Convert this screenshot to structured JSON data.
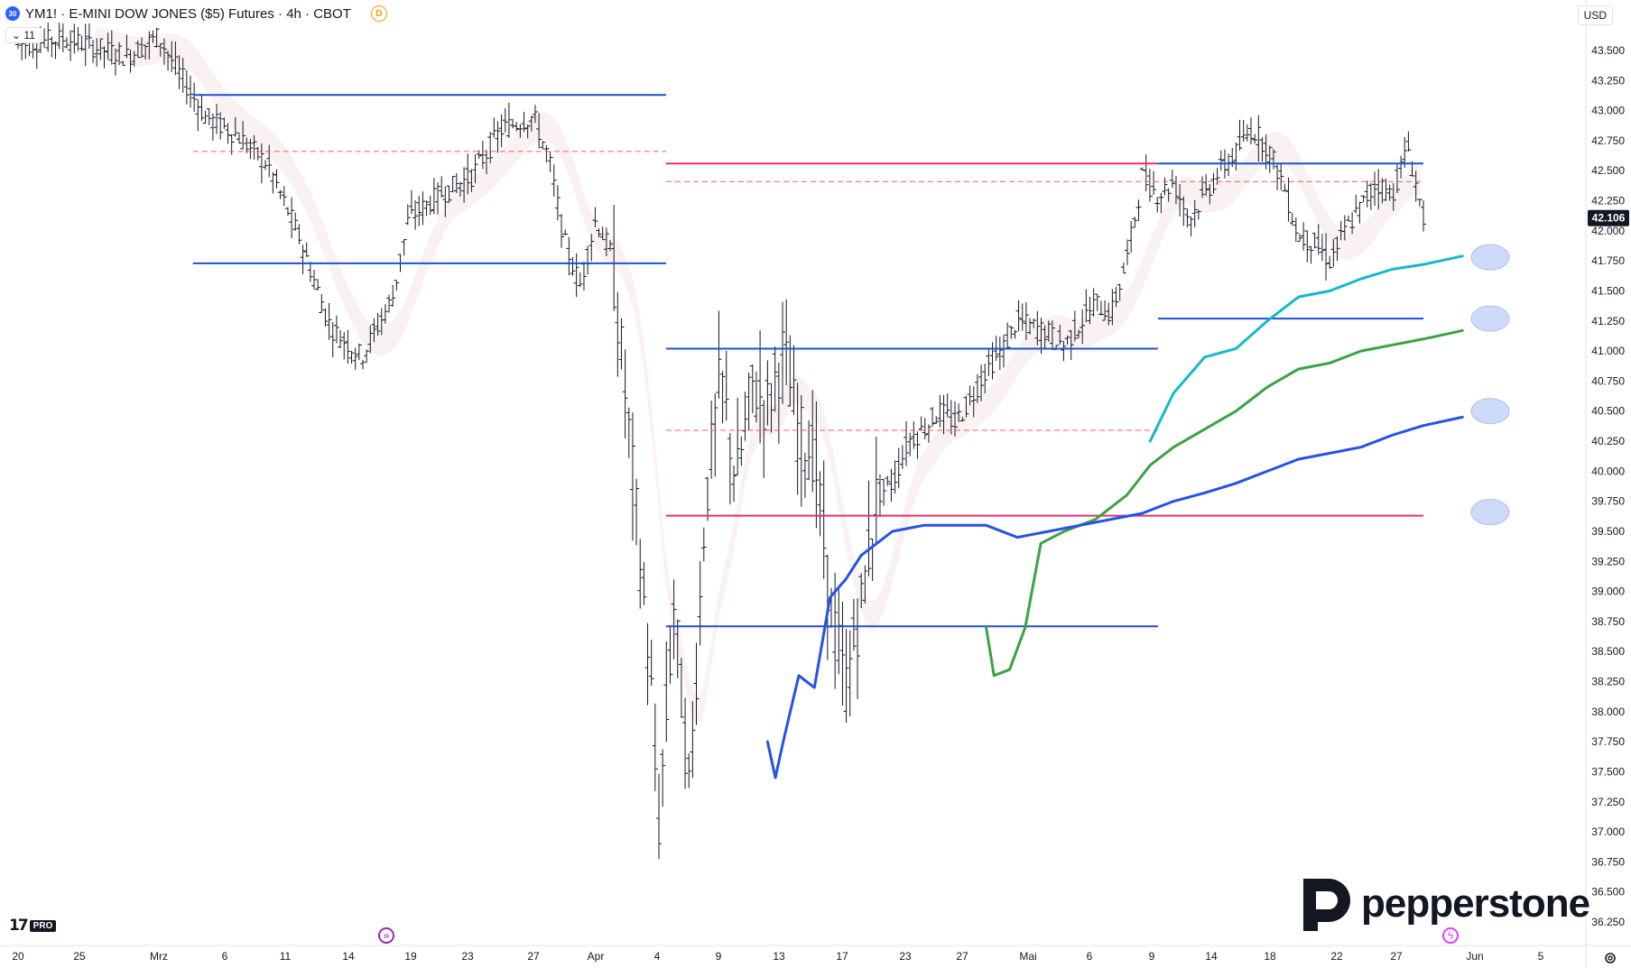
{
  "header": {
    "symbol_badge": "30",
    "title": "YM1! · E-MINI DOW JONES ($5) Futures · 4h · CBOT",
    "session_badge": "D",
    "collapse_label": "11"
  },
  "currency_label": "USD",
  "logos": {
    "tradingview": "17",
    "tradingview_pro": "PRO",
    "broker": "pepperstone"
  },
  "icons": [
    "goto-realtime-icon",
    "lightning-icon",
    "settings-icon"
  ],
  "colors": {
    "line_blue": "#1f4fd6",
    "line_pink": "#e5306c",
    "dash_red": "#f05a5a",
    "ema_cyan": "#17b7cc",
    "ema_green": "#3aa344",
    "ema_blue": "#2453e6",
    "price_label_bg": "#131722",
    "marker": "#c9d7f7"
  },
  "chart_data": {
    "type": "line",
    "title": "",
    "xlabel": "",
    "ylabel": "",
    "ylim": [
      36.0,
      43.8
    ],
    "grid": false,
    "last_price": "42.106",
    "y_ticks": [
      "43.500",
      "43.250",
      "43.000",
      "42.750",
      "42.500",
      "42.250",
      "42.000",
      "41.750",
      "41.500",
      "41.250",
      "41.000",
      "40.750",
      "40.500",
      "40.250",
      "40.000",
      "39.750",
      "39.500",
      "39.250",
      "39.000",
      "38.750",
      "38.500",
      "38.250",
      "38.000",
      "37.750",
      "37.500",
      "37.250",
      "37.000",
      "36.750",
      "36.500",
      "36.250"
    ],
    "x_ticks": [
      "20",
      "25",
      "Mrz",
      "6",
      "11",
      "14",
      "19",
      "23",
      "27",
      "Apr",
      "4",
      "9",
      "13",
      "17",
      "23",
      "27",
      "Mai",
      "6",
      "9",
      "14",
      "18",
      "22",
      "27",
      "Jun",
      "5"
    ],
    "price_path": [
      [
        0.0,
        43.55
      ],
      [
        0.03,
        43.6
      ],
      [
        0.07,
        43.45
      ],
      [
        0.09,
        43.62
      ],
      [
        0.1,
        43.38
      ],
      [
        0.12,
        42.95
      ],
      [
        0.14,
        42.8
      ],
      [
        0.16,
        42.55
      ],
      [
        0.18,
        41.95
      ],
      [
        0.2,
        41.2
      ],
      [
        0.22,
        40.95
      ],
      [
        0.24,
        41.45
      ],
      [
        0.25,
        42.1
      ],
      [
        0.27,
        42.3
      ],
      [
        0.29,
        42.45
      ],
      [
        0.31,
        42.85
      ],
      [
        0.33,
        42.95
      ],
      [
        0.34,
        42.6
      ],
      [
        0.35,
        41.9
      ],
      [
        0.36,
        41.55
      ],
      [
        0.37,
        42.1
      ],
      [
        0.38,
        41.8
      ],
      [
        0.39,
        40.5
      ],
      [
        0.405,
        38.3
      ],
      [
        0.41,
        37.0
      ],
      [
        0.42,
        38.9
      ],
      [
        0.43,
        37.3
      ],
      [
        0.44,
        39.7
      ],
      [
        0.45,
        40.8
      ],
      [
        0.46,
        39.9
      ],
      [
        0.47,
        40.7
      ],
      [
        0.48,
        40.55
      ],
      [
        0.49,
        41.0
      ],
      [
        0.5,
        40.3
      ],
      [
        0.51,
        40.15
      ],
      [
        0.52,
        38.9
      ],
      [
        0.53,
        38.2
      ],
      [
        0.54,
        38.9
      ],
      [
        0.55,
        39.8
      ],
      [
        0.56,
        39.9
      ],
      [
        0.57,
        40.25
      ],
      [
        0.58,
        40.35
      ],
      [
        0.59,
        40.5
      ],
      [
        0.6,
        40.4
      ],
      [
        0.61,
        40.6
      ],
      [
        0.62,
        40.85
      ],
      [
        0.63,
        41.0
      ],
      [
        0.64,
        41.25
      ],
      [
        0.66,
        41.15
      ],
      [
        0.67,
        41.05
      ],
      [
        0.69,
        41.4
      ],
      [
        0.7,
        41.3
      ],
      [
        0.71,
        41.75
      ],
      [
        0.72,
        42.45
      ],
      [
        0.73,
        42.3
      ],
      [
        0.74,
        42.4
      ],
      [
        0.75,
        42.1
      ],
      [
        0.76,
        42.3
      ],
      [
        0.77,
        42.5
      ],
      [
        0.78,
        42.65
      ],
      [
        0.79,
        42.85
      ],
      [
        0.8,
        42.7
      ],
      [
        0.81,
        42.4
      ],
      [
        0.82,
        41.95
      ],
      [
        0.83,
        41.9
      ],
      [
        0.84,
        41.75
      ],
      [
        0.85,
        42.0
      ],
      [
        0.86,
        42.2
      ],
      [
        0.87,
        42.4
      ],
      [
        0.88,
        42.3
      ],
      [
        0.89,
        42.7
      ],
      [
        0.9,
        42.106
      ]
    ],
    "horizontal_levels": [
      {
        "value": 43.13,
        "color": "blue",
        "from": 0.112,
        "to": 0.415
      },
      {
        "value": 41.73,
        "color": "blue",
        "from": 0.112,
        "to": 0.415
      },
      {
        "value": 42.66,
        "color": "red-dashed",
        "from": 0.112,
        "to": 0.415
      },
      {
        "value": 42.56,
        "color": "pink",
        "from": 0.415,
        "to": 0.73
      },
      {
        "value": 42.41,
        "color": "red-dashed",
        "from": 0.415,
        "to": 0.9
      },
      {
        "value": 41.02,
        "color": "blue",
        "from": 0.415,
        "to": 0.73
      },
      {
        "value": 40.34,
        "color": "red-dashed",
        "from": 0.415,
        "to": 0.73
      },
      {
        "value": 39.63,
        "color": "pink",
        "from": 0.415,
        "to": 0.9
      },
      {
        "value": 38.71,
        "color": "blue",
        "from": 0.415,
        "to": 0.73
      },
      {
        "value": 42.56,
        "color": "blue",
        "from": 0.73,
        "to": 0.9
      },
      {
        "value": 41.27,
        "color": "blue",
        "from": 0.73,
        "to": 0.9
      }
    ],
    "series": [
      {
        "color": "cyan",
        "values": [
          [
            0.725,
            40.25
          ],
          [
            0.74,
            40.65
          ],
          [
            0.76,
            40.95
          ],
          [
            0.78,
            41.02
          ],
          [
            0.8,
            41.25
          ],
          [
            0.82,
            41.45
          ],
          [
            0.84,
            41.5
          ],
          [
            0.86,
            41.6
          ],
          [
            0.88,
            41.68
          ],
          [
            0.9,
            41.72
          ],
          [
            0.925,
            41.79
          ]
        ]
      },
      {
        "color": "green",
        "values": [
          [
            0.62,
            38.7
          ],
          [
            0.625,
            38.3
          ],
          [
            0.635,
            38.35
          ],
          [
            0.645,
            38.7
          ],
          [
            0.655,
            39.4
          ],
          [
            0.67,
            39.5
          ],
          [
            0.69,
            39.6
          ],
          [
            0.71,
            39.8
          ],
          [
            0.725,
            40.05
          ],
          [
            0.74,
            40.2
          ],
          [
            0.76,
            40.35
          ],
          [
            0.78,
            40.5
          ],
          [
            0.8,
            40.7
          ],
          [
            0.82,
            40.85
          ],
          [
            0.84,
            40.9
          ],
          [
            0.86,
            41.0
          ],
          [
            0.88,
            41.05
          ],
          [
            0.9,
            41.1
          ],
          [
            0.925,
            41.17
          ]
        ]
      },
      {
        "color": "blue",
        "values": [
          [
            0.48,
            37.75
          ],
          [
            0.485,
            37.45
          ],
          [
            0.49,
            37.75
          ],
          [
            0.5,
            38.3
          ],
          [
            0.51,
            38.2
          ],
          [
            0.52,
            38.95
          ],
          [
            0.53,
            39.1
          ],
          [
            0.54,
            39.3
          ],
          [
            0.56,
            39.5
          ],
          [
            0.58,
            39.55
          ],
          [
            0.6,
            39.55
          ],
          [
            0.62,
            39.55
          ],
          [
            0.64,
            39.45
          ],
          [
            0.66,
            39.5
          ],
          [
            0.68,
            39.55
          ],
          [
            0.7,
            39.6
          ],
          [
            0.72,
            39.65
          ],
          [
            0.74,
            39.75
          ],
          [
            0.76,
            39.82
          ],
          [
            0.78,
            39.9
          ],
          [
            0.8,
            40.0
          ],
          [
            0.82,
            40.1
          ],
          [
            0.84,
            40.15
          ],
          [
            0.86,
            40.2
          ],
          [
            0.88,
            40.3
          ],
          [
            0.9,
            40.38
          ],
          [
            0.925,
            40.45
          ]
        ]
      }
    ],
    "markers": [
      41.78,
      41.27,
      40.5,
      39.66
    ]
  }
}
